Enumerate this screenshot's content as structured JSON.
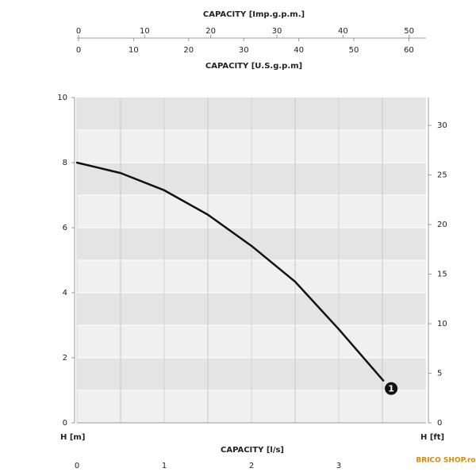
{
  "chart_data": {
    "type": "line",
    "xlabel": "CAPACITY [l/s]",
    "ylabel": "H [m]",
    "y2label": "H [ft]",
    "x": [
      0,
      0.5,
      1,
      1.5,
      2,
      2.5,
      3,
      3.51
    ],
    "series": [
      {
        "name": "1",
        "color": "#111111",
        "values": [
          8,
          7.68,
          7.15,
          6.4,
          5.44,
          4.34,
          2.88,
          1.3
        ]
      }
    ],
    "xlim": [
      0,
      4
    ],
    "xticks": [
      0,
      1,
      2,
      3
    ],
    "ylim": [
      0,
      10
    ],
    "yticks": [
      0,
      2,
      4,
      6,
      8,
      10
    ],
    "y2lim": [
      0,
      32.81
    ],
    "y2ticks": [
      0,
      5,
      10,
      15,
      20,
      25,
      30
    ],
    "top_axes": [
      {
        "label": "CAPACITY [Imp.g.p.m.]",
        "lim": [
          0,
          52.8
        ],
        "ticks": [
          0,
          10,
          20,
          30,
          40,
          50
        ]
      },
      {
        "label": "CAPACITY [U.S.g.p.m]",
        "lim": [
          0,
          63.4
        ],
        "ticks": [
          0,
          10,
          20,
          30,
          40,
          50,
          60
        ]
      }
    ],
    "grid": true,
    "logo": "BRICO SHOP.ro"
  }
}
